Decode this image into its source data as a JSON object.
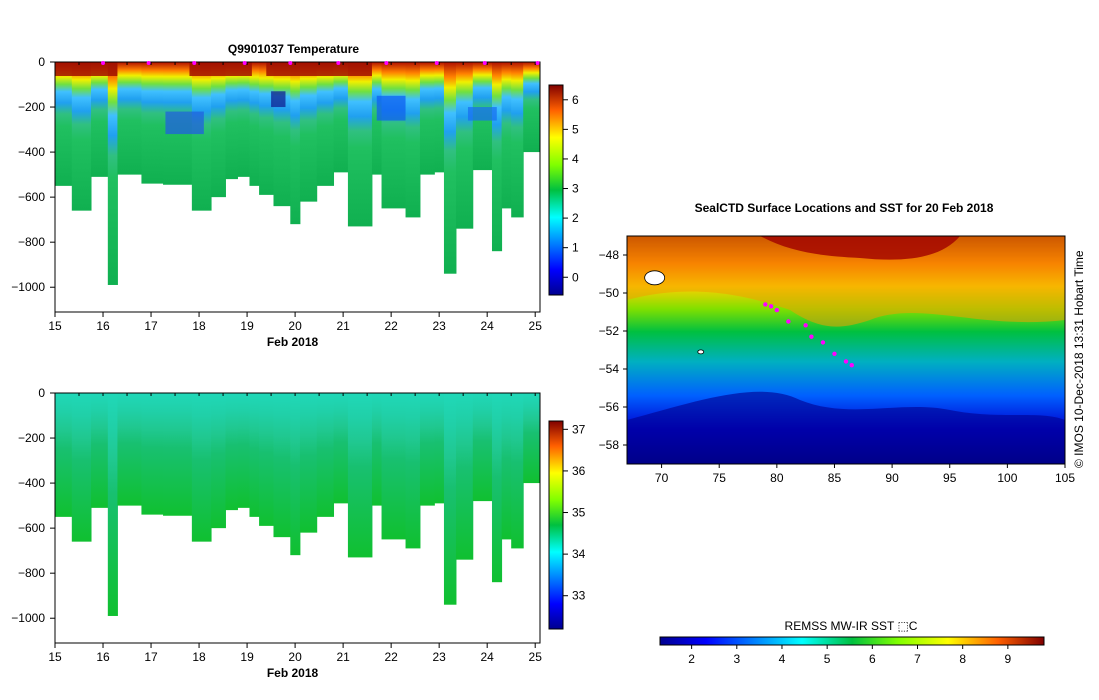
{
  "chart_data": [
    {
      "type": "heatmap",
      "title": "Q9901037  Temperature",
      "xlabel": "Feb 2018",
      "ylabel": "",
      "x_ticks": [
        15,
        16,
        17,
        18,
        19,
        20,
        21,
        22,
        23,
        24,
        25
      ],
      "xlim": [
        15,
        25.1
      ],
      "y_ticks": [
        0,
        -200,
        -400,
        -600,
        -800,
        -1000
      ],
      "ylim": [
        -1110,
        0
      ],
      "colorbar": {
        "ticks": [
          0,
          1,
          2,
          3,
          4,
          5,
          6
        ],
        "range": [
          -0.6,
          6.5
        ]
      },
      "profiles": [
        {
          "day": 15.0,
          "max_depth": 550
        },
        {
          "day": 15.35,
          "max_depth": 660
        },
        {
          "day": 15.75,
          "max_depth": 510
        },
        {
          "day": 16.1,
          "max_depth": 990
        },
        {
          "day": 16.3,
          "max_depth": 500
        },
        {
          "day": 16.8,
          "max_depth": 540
        },
        {
          "day": 17.25,
          "max_depth": 545
        },
        {
          "day": 17.85,
          "max_depth": 660
        },
        {
          "day": 18.25,
          "max_depth": 600
        },
        {
          "day": 18.55,
          "max_depth": 520
        },
        {
          "day": 18.8,
          "max_depth": 510
        },
        {
          "day": 19.05,
          "max_depth": 550
        },
        {
          "day": 19.25,
          "max_depth": 590
        },
        {
          "day": 19.55,
          "max_depth": 640
        },
        {
          "day": 19.9,
          "max_depth": 720
        },
        {
          "day": 20.1,
          "max_depth": 620
        },
        {
          "day": 20.45,
          "max_depth": 550
        },
        {
          "day": 20.8,
          "max_depth": 490
        },
        {
          "day": 21.1,
          "max_depth": 730
        },
        {
          "day": 21.6,
          "max_depth": 500
        },
        {
          "day": 21.8,
          "max_depth": 650
        },
        {
          "day": 22.3,
          "max_depth": 690
        },
        {
          "day": 22.6,
          "max_depth": 500
        },
        {
          "day": 22.9,
          "max_depth": 490
        },
        {
          "day": 23.1,
          "max_depth": 940
        },
        {
          "day": 23.35,
          "max_depth": 740
        },
        {
          "day": 23.7,
          "max_depth": 480
        },
        {
          "day": 24.1,
          "max_depth": 840
        },
        {
          "day": 24.3,
          "max_depth": 650
        },
        {
          "day": 24.5,
          "max_depth": 690
        },
        {
          "day": 24.75,
          "max_depth": 400
        }
      ]
    },
    {
      "type": "heatmap",
      "title": "",
      "xlabel": "Feb 2018",
      "ylabel": "",
      "x_ticks": [
        15,
        16,
        17,
        18,
        19,
        20,
        21,
        22,
        23,
        24,
        25
      ],
      "xlim": [
        15,
        25.1
      ],
      "y_ticks": [
        0,
        -200,
        -400,
        -600,
        -800,
        -1000
      ],
      "ylim": [
        -1110,
        0
      ],
      "colorbar": {
        "ticks": [
          33,
          34,
          35,
          36,
          37
        ],
        "range": [
          32.2,
          37.2
        ]
      }
    },
    {
      "type": "heatmap",
      "title": "SealCTD Surface Locations and SST for 20 Feb 2018",
      "xlabel": "",
      "ylabel": "",
      "x_ticks": [
        70,
        75,
        80,
        85,
        90,
        95,
        100,
        105
      ],
      "xlim": [
        67,
        105
      ],
      "y_ticks": [
        -48,
        -50,
        -52,
        -54,
        -56,
        -58
      ],
      "ylim": [
        -59,
        -47
      ],
      "colorbar": {
        "label": "REMSS MW-IR SST ⬚C",
        "ticks": [
          2,
          3,
          4,
          5,
          6,
          7,
          8,
          9
        ],
        "range": [
          1.3,
          9.8
        ]
      },
      "surface_locations": [
        [
          79,
          -50.6
        ],
        [
          79.5,
          -50.7
        ],
        [
          80,
          -50.9
        ],
        [
          81,
          -51.5
        ],
        [
          82.5,
          -51.7
        ],
        [
          83,
          -52.3
        ],
        [
          84,
          -52.6
        ],
        [
          85,
          -53.2
        ],
        [
          86,
          -53.6
        ],
        [
          86.5,
          -53.8
        ]
      ]
    }
  ],
  "credit": "© IMOS 10-Dec-2018 13:31 Hobart Time"
}
